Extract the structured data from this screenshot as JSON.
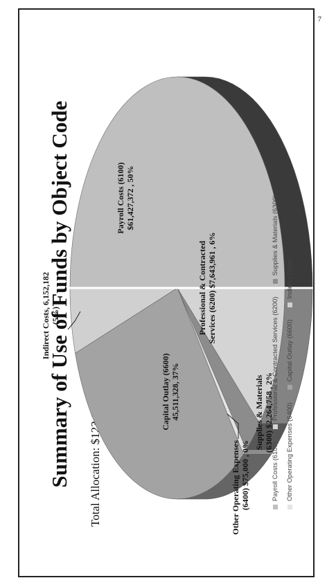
{
  "page_number": "7",
  "chart_data": {
    "type": "pie",
    "title": "Summary of Use of Funds by Object Code",
    "subtitle": "Total Allocation: $123,043,641",
    "slices": [
      {
        "name": "Payroll Costs (6100)",
        "label_lines": [
          "Payroll Costs  (6100)",
          "$61,427,372 , 50%"
        ],
        "value": 61427372,
        "percent": 50,
        "color": "#bfbfbf"
      },
      {
        "name": "Professional & Contracted Services (6200)",
        "label_lines": [
          "Professional & Contracted",
          "Services (6200)  $7,643,961 , 6%"
        ],
        "value": 7643961,
        "percent": 6,
        "color": "#d4d4d4"
      },
      {
        "name": "Supplies & Materials (6300)",
        "label_lines": [
          "Supplies & Materials",
          "(6300) $2,264,758 , 2%"
        ],
        "value": 2264758,
        "percent": 2,
        "color": "#8c8c8c"
      },
      {
        "name": "Other Operating Expenses (6400)",
        "label_lines": [
          "Other Operating Expenses",
          "(6400) $75,000 , 0%"
        ],
        "value": 75000,
        "percent": 0,
        "color": "#e4e4e4"
      },
      {
        "name": "Capital Outlay (6600)",
        "label_lines": [
          "Capital Outlay (6600)",
          "45,511,328, 37%"
        ],
        "value": 45511328,
        "percent": 37,
        "color": "#a3a3a3"
      },
      {
        "name": "Indirect Costs",
        "label_lines": [
          "Indirect Costs, 6,152,182",
          "(5%)"
        ],
        "value": 6152182,
        "percent": 5,
        "color": "#d0d0d0"
      }
    ],
    "legend": [
      [
        "Payroll Costs (6100)",
        "Professional & Contracted Services (6200)",
        "Supplies & Materials (6300)"
      ],
      [
        "Other Operating Expenses (6400)",
        "Capital Outlay (6600)",
        "Indirect Costs"
      ]
    ],
    "legend_position": "bottom",
    "style": "3d-pie"
  }
}
